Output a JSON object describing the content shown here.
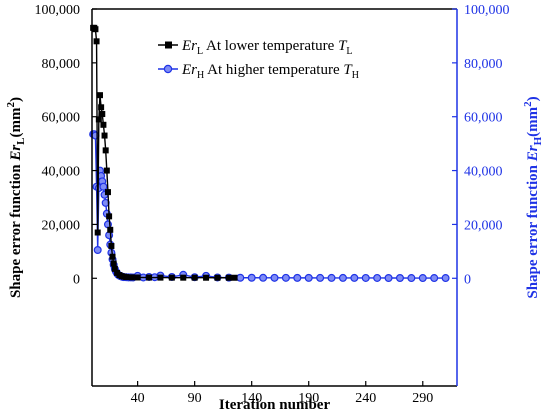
{
  "chart_data": {
    "type": "line",
    "xlabel": "Iteration number",
    "ylabel_left": {
      "base": "Shape error function ",
      "var": "Er",
      "sub": "L",
      "unit": "(mm",
      "sup": "2",
      "close": ")"
    },
    "ylabel_right": {
      "base": "Shape error function ",
      "var": "Er",
      "sub": "H",
      "unit": "(mm",
      "sup": "2",
      "close": ")"
    },
    "xlim": [
      0,
      320
    ],
    "ylim": [
      -40000,
      100000
    ],
    "x_ticks": [
      40,
      90,
      140,
      190,
      240,
      290
    ],
    "x_tick_labels": [
      "40",
      "90",
      "140",
      "190",
      "240",
      "290"
    ],
    "y_ticks": [
      0,
      20000,
      40000,
      60000,
      80000,
      100000
    ],
    "y_tick_labels_left": [
      "0",
      "20,000",
      "40,000",
      "60,000",
      "80,000",
      "100,000"
    ],
    "y_tick_labels_right": [
      "0",
      "20,000",
      "40,000",
      "60,000",
      "80,000",
      "100,000"
    ],
    "legend_position": "top-right",
    "legend": [
      {
        "var": "Er",
        "sub": "L",
        "text": " At lower temperature ",
        "tvar": "T",
        "tsub": "L"
      },
      {
        "var": "Er",
        "sub": "H",
        "text": " At higher temperature ",
        "tvar": "T",
        "tsub": "H"
      }
    ],
    "series": [
      {
        "key": "ErL",
        "axis": "left",
        "color": "#000000",
        "marker": "square",
        "x": [
          1,
          2,
          3,
          4,
          5,
          6,
          7,
          8,
          9,
          10,
          11,
          12,
          13,
          14,
          15,
          16,
          17,
          18,
          19,
          20,
          22,
          24,
          26,
          28,
          30,
          35,
          40,
          50,
          60,
          70,
          80,
          90,
          100,
          110,
          120,
          125
        ],
        "y": [
          93000,
          93000,
          92500,
          88000,
          17000,
          59000,
          68000,
          63500,
          61000,
          57000,
          53000,
          47500,
          40000,
          32000,
          23000,
          18000,
          12000,
          8000,
          5500,
          3500,
          2000,
          1200,
          800,
          600,
          450,
          350,
          300,
          280,
          250,
          240,
          230,
          220,
          210,
          200,
          200,
          200
        ]
      },
      {
        "key": "ErH",
        "axis": "right",
        "color": "#1f33e6",
        "marker": "circle",
        "x": [
          1,
          2,
          3,
          4,
          5,
          6,
          7,
          8,
          9,
          10,
          11,
          12,
          13,
          14,
          15,
          16,
          17,
          18,
          19,
          20,
          21,
          22,
          23,
          24,
          25,
          26,
          27,
          28,
          30,
          32,
          34,
          36,
          40,
          45,
          50,
          55,
          60,
          70,
          80,
          90,
          100,
          110,
          120,
          130,
          140,
          150,
          160,
          170,
          180,
          190,
          200,
          210,
          220,
          230,
          240,
          250,
          260,
          270,
          280,
          290,
          300,
          310
        ],
        "y": [
          53500,
          53500,
          53000,
          34000,
          10500,
          33500,
          40000,
          38000,
          36000,
          34000,
          31000,
          28000,
          24000,
          20000,
          16000,
          12500,
          9500,
          7000,
          5000,
          3500,
          2500,
          1800,
          1300,
          1000,
          800,
          650,
          500,
          450,
          400,
          350,
          320,
          300,
          900,
          300,
          500,
          400,
          1000,
          500,
          1300,
          400,
          900,
          300,
          250,
          200,
          200,
          180,
          170,
          160,
          150,
          150,
          140,
          140,
          130,
          130,
          120,
          120,
          110,
          110,
          100,
          100,
          100,
          100
        ]
      }
    ]
  }
}
